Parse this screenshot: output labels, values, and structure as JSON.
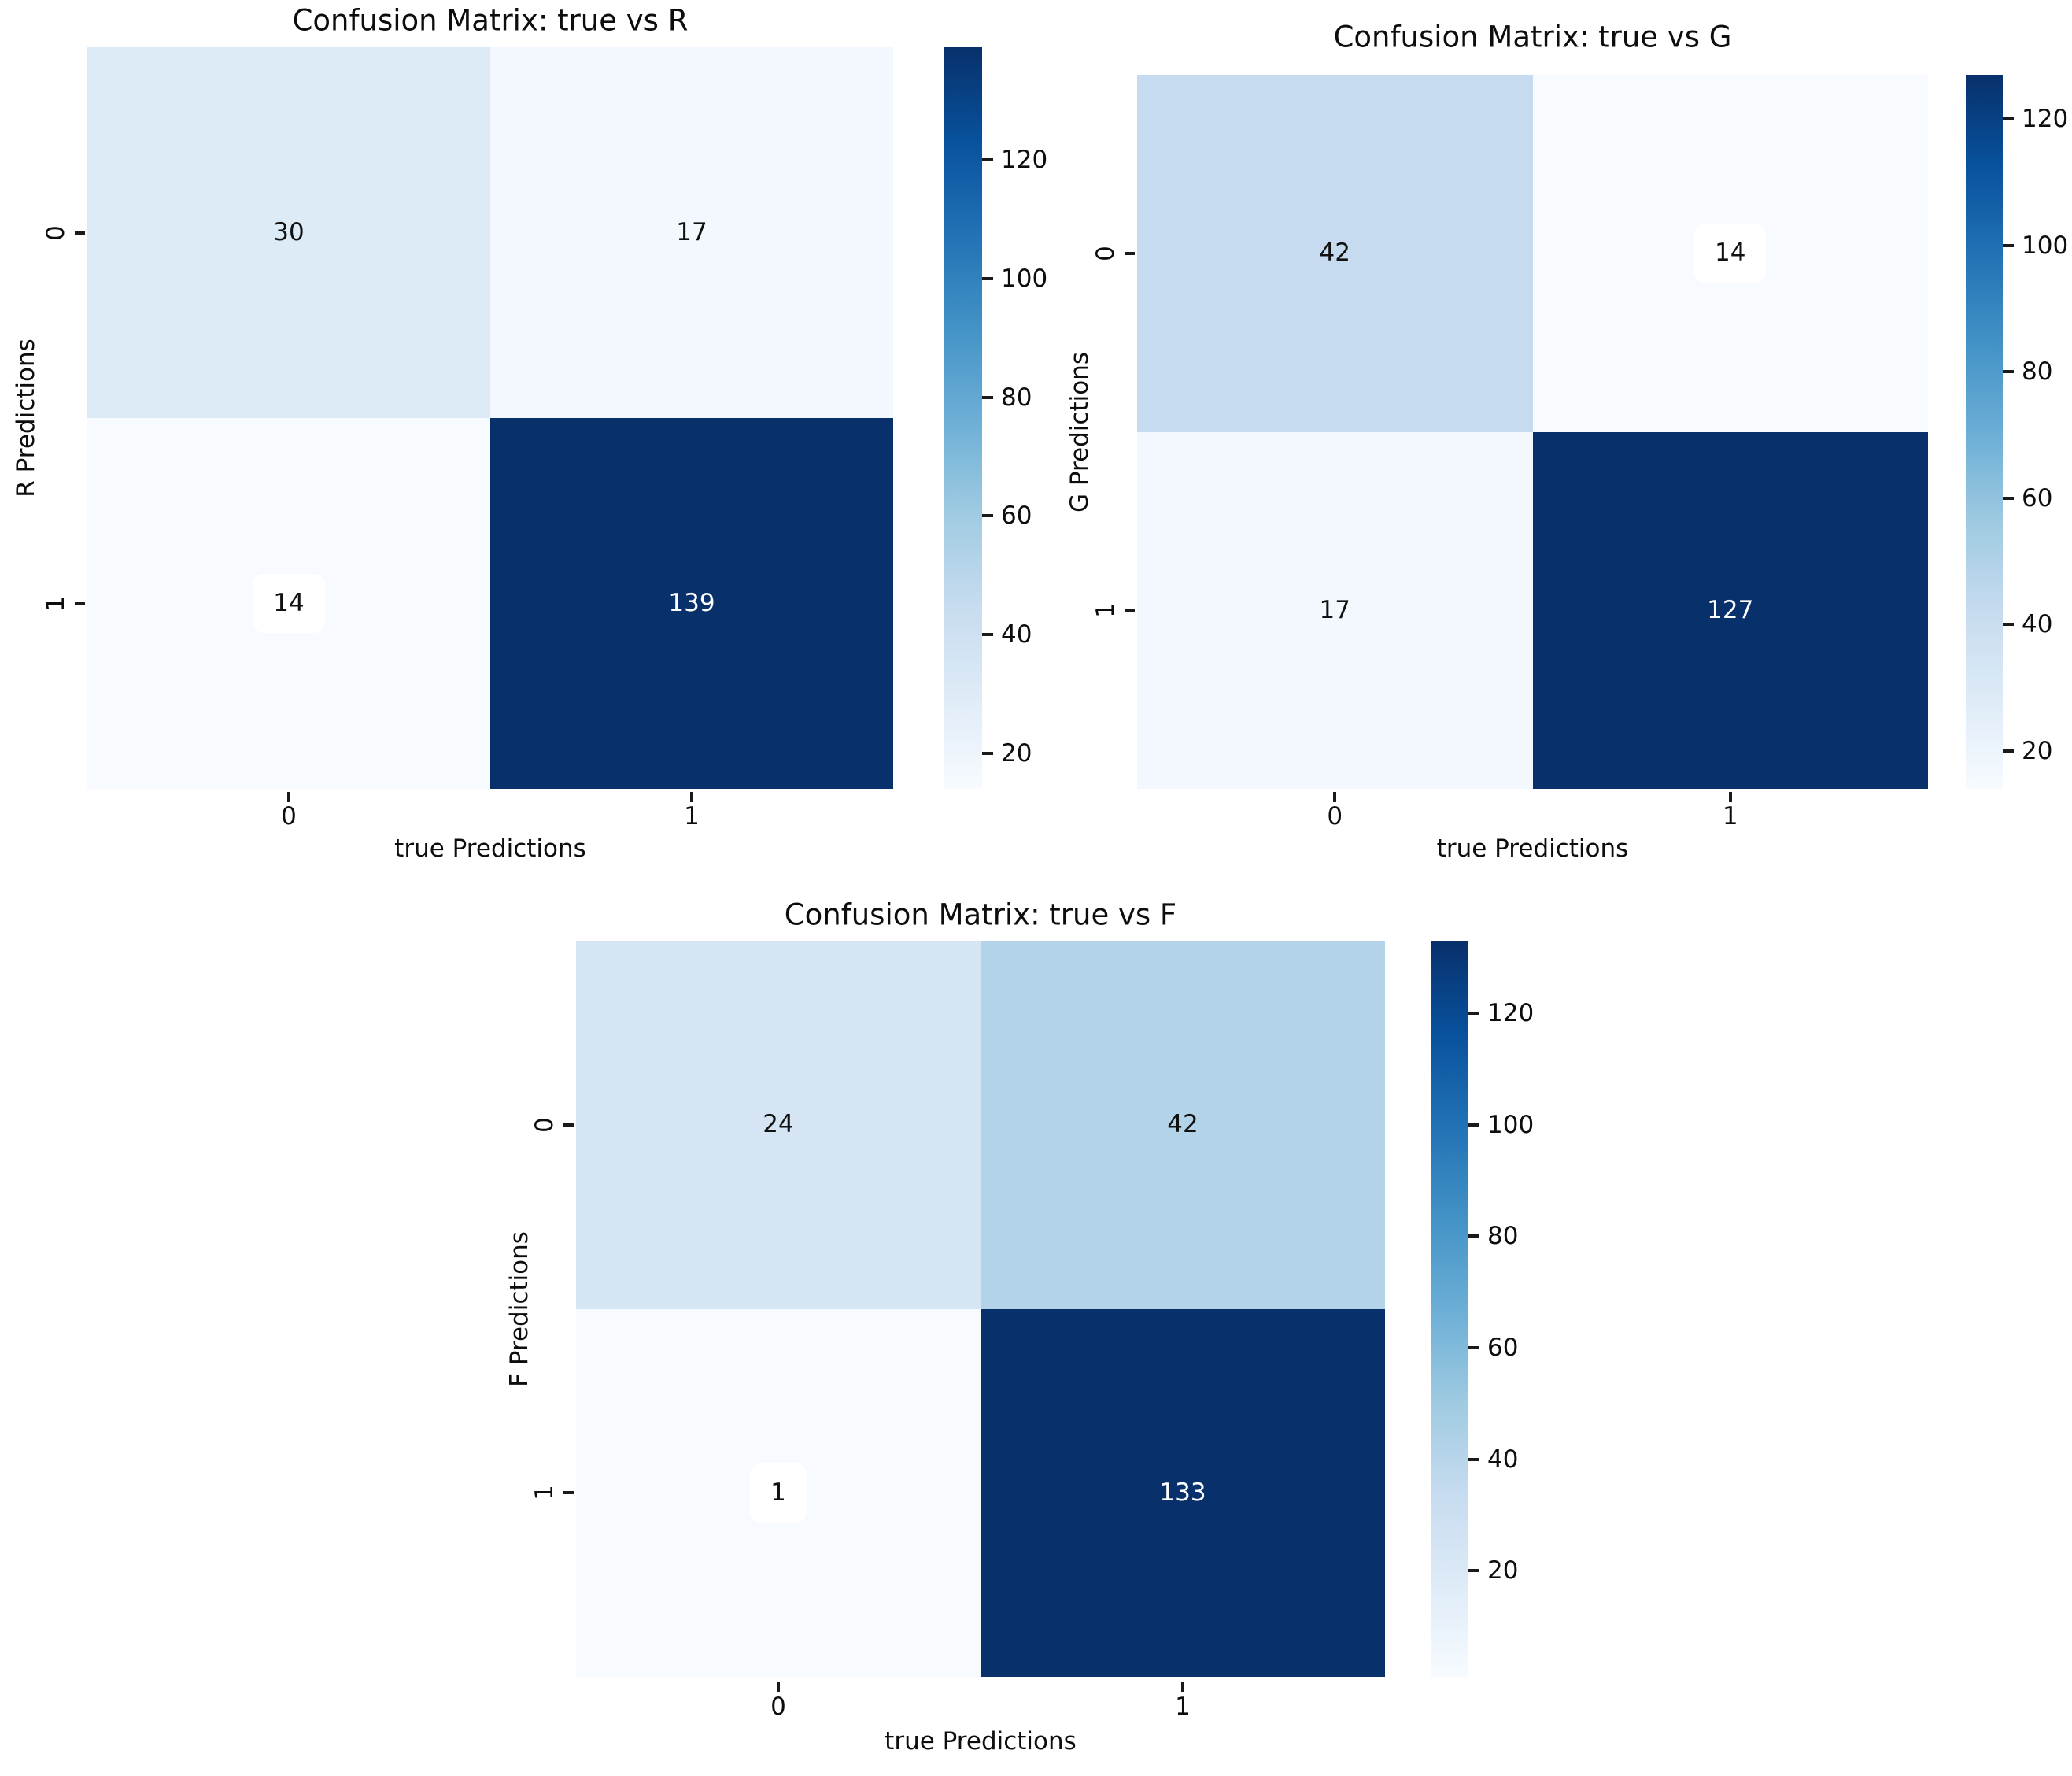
{
  "page": {
    "background": "#ffffff",
    "description": "Three seaborn-style confusion-matrix heatmaps with Blues colormap and vertical colorbars"
  },
  "colormap": {
    "name": "Blues",
    "stops": [
      [
        0.0,
        "#f7fbff"
      ],
      [
        0.125,
        "#deebf7"
      ],
      [
        0.25,
        "#c6dbef"
      ],
      [
        0.375,
        "#9ecae1"
      ],
      [
        0.5,
        "#6baed6"
      ],
      [
        0.625,
        "#4292c6"
      ],
      [
        0.75,
        "#2171b5"
      ],
      [
        0.875,
        "#08519c"
      ],
      [
        1.0,
        "#08306b"
      ]
    ],
    "dark_cell_text": "#ffffff",
    "light_cell_text": "#111111"
  },
  "chart_data": [
    {
      "type": "heatmap",
      "title": "Confusion Matrix: true vs R",
      "xlabel": "true Predictions",
      "ylabel": "R Predictions",
      "x_ticklabels": [
        "0",
        "1"
      ],
      "y_ticklabels": [
        "0",
        "1"
      ],
      "matrix": [
        [
          30,
          17
        ],
        [
          14,
          139
        ]
      ],
      "vmin": 14,
      "vmax": 139,
      "colorbar_ticks": [
        20,
        40,
        60,
        80,
        100,
        120
      ],
      "grid": false,
      "legend": "colorbar-right"
    },
    {
      "type": "heatmap",
      "title": "Confusion Matrix: true vs G",
      "xlabel": "true Predictions",
      "ylabel": "G Predictions",
      "x_ticklabels": [
        "0",
        "1"
      ],
      "y_ticklabels": [
        "0",
        "1"
      ],
      "matrix": [
        [
          42,
          14
        ],
        [
          17,
          127
        ]
      ],
      "vmin": 14,
      "vmax": 127,
      "colorbar_ticks": [
        20,
        40,
        60,
        80,
        100,
        120
      ],
      "grid": false,
      "legend": "colorbar-right"
    },
    {
      "type": "heatmap",
      "title": "Confusion Matrix: true vs F",
      "xlabel": "true Predictions",
      "ylabel": "F Predictions",
      "x_ticklabels": [
        "0",
        "1"
      ],
      "y_ticklabels": [
        "0",
        "1"
      ],
      "matrix": [
        [
          24,
          42
        ],
        [
          1,
          133
        ]
      ],
      "vmin": 1,
      "vmax": 133,
      "colorbar_ticks": [
        20,
        40,
        60,
        80,
        100,
        120
      ],
      "grid": false,
      "legend": "colorbar-right"
    }
  ]
}
